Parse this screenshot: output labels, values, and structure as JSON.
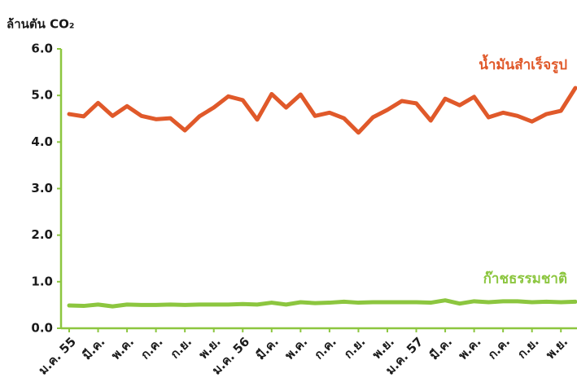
{
  "chart_data": {
    "type": "line",
    "y_label": "ล้านตัน CO₂",
    "categories": [
      "ม.ค. 55",
      null,
      "มี.ค.",
      null,
      "พ.ค.",
      null,
      "ก.ค.",
      null,
      "ก.ย.",
      null,
      "พ.ย.",
      null,
      "ม.ค. 56",
      null,
      "มี.ค.",
      null,
      "พ.ค.",
      null,
      "ก.ค.",
      null,
      "ก.ย.",
      null,
      "พ.ย.",
      null,
      "ม.ค. 57",
      null,
      "มี.ค.",
      null,
      "พ.ค.",
      null,
      "ก.ค.",
      null,
      "ก.ย.",
      null,
      "พ.ย.",
      null
    ],
    "series": [
      {
        "name": "น้ำมันสำเร็จรูป",
        "color": "#e0592a",
        "values": [
          4.6,
          4.55,
          4.84,
          4.56,
          4.77,
          4.56,
          4.49,
          4.51,
          4.25,
          4.55,
          4.74,
          4.98,
          4.9,
          4.48,
          5.03,
          4.74,
          5.02,
          4.56,
          4.63,
          4.51,
          4.2,
          4.53,
          4.69,
          4.88,
          4.83,
          4.46,
          4.93,
          4.79,
          4.97,
          4.53,
          4.63,
          4.56,
          4.44,
          4.6,
          4.67,
          5.16
        ]
      },
      {
        "name": "ก๊าชธรรมชาติ",
        "color": "#8cc63f",
        "values": [
          0.49,
          0.48,
          0.51,
          0.47,
          0.51,
          0.5,
          0.5,
          0.51,
          0.5,
          0.51,
          0.51,
          0.51,
          0.52,
          0.51,
          0.55,
          0.51,
          0.56,
          0.54,
          0.55,
          0.57,
          0.55,
          0.56,
          0.56,
          0.56,
          0.56,
          0.55,
          0.6,
          0.53,
          0.58,
          0.56,
          0.58,
          0.58,
          0.56,
          0.57,
          0.56,
          0.57
        ]
      }
    ],
    "ylim": [
      0,
      6
    ],
    "yticks": [
      {
        "value": 0,
        "label": "0.0"
      },
      {
        "value": 1,
        "label": "1.0"
      },
      {
        "value": 2,
        "label": "2.0"
      },
      {
        "value": 3,
        "label": "3.0"
      },
      {
        "value": 4,
        "label": "4.0"
      },
      {
        "value": 5,
        "label": "5.0"
      },
      {
        "value": 6,
        "label": "6.0"
      }
    ],
    "axis_color": "#8cc63f"
  }
}
